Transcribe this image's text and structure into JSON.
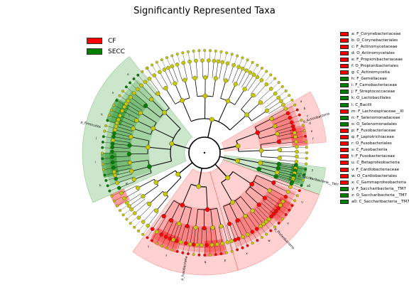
{
  "title": "Significantly Represented Taxa",
  "colors": {
    "CF": "#ff0000",
    "SECC": "#008000",
    "none": "#c8c800"
  },
  "legend": [
    {
      "label": "CF",
      "group": "CF"
    },
    {
      "label": "SECC",
      "group": "SECC"
    }
  ],
  "key_items": [
    {
      "text": "a: F_Corynebacteriaceae",
      "group": "CF"
    },
    {
      "text": "b: O_Corynebacteriales",
      "group": "CF"
    },
    {
      "text": "c: F_Actinomycetaceae",
      "group": "CF"
    },
    {
      "text": "d: O_Actinomycetales",
      "group": "CF"
    },
    {
      "text": "e: F_Propionibacteriaceae",
      "group": "CF"
    },
    {
      "text": "f: O_Propionibacteriales",
      "group": "CF"
    },
    {
      "text": "g: C_Actinomycetia",
      "group": "CF"
    },
    {
      "text": "h: F_Gemellaceae",
      "group": "SECC"
    },
    {
      "text": "i: F_Carnobacteriaceae",
      "group": "SECC"
    },
    {
      "text": "j: F_Streptococcaceae",
      "group": "SECC"
    },
    {
      "text": "k: O_Lactobacillales",
      "group": "SECC"
    },
    {
      "text": "l: C_Bacilli",
      "group": "SECC"
    },
    {
      "text": "m: F_Lachnospiraceae__XI",
      "group": "CF"
    },
    {
      "text": "n: F_Selenomonadaceae",
      "group": "SECC"
    },
    {
      "text": "o: O_Selenomonadales",
      "group": "SECC"
    },
    {
      "text": "p: F_Fusobacteriaceae",
      "group": "CF"
    },
    {
      "text": "q: F_Leptotrichiaceae",
      "group": "CF"
    },
    {
      "text": "r: O_Fusobacteriales",
      "group": "CF"
    },
    {
      "text": "s: C_Fusobacteriia",
      "group": "CF"
    },
    {
      "text": "t: F_Fusobacteriaceae",
      "group": "CF"
    },
    {
      "text": "u: C_Betaproteobacteria",
      "group": "CF"
    },
    {
      "text": "v: F_Cardiobacteriaceae",
      "group": "CF"
    },
    {
      "text": "w: O_Cardiobacteriales",
      "group": "CF"
    },
    {
      "text": "x: C_Gammaproteobacteria",
      "group": "CF"
    },
    {
      "text": "y: F_Saccharibacteria__TM7",
      "group": "SECC"
    },
    {
      "text": "z: O_Saccharibacteria__TM7",
      "group": "SECC"
    },
    {
      "text": "a0: C_Saccharibacteria__TM7",
      "group": "SECC"
    }
  ],
  "phyla": [
    {
      "label": "p_Actinobacteria",
      "group": "CF",
      "from": 60,
      "to": 85,
      "sub_letters": [
        "a",
        "b",
        "c",
        "d",
        "e",
        "f"
      ]
    },
    {
      "label": "p_Saccharibacteria__TM7",
      "group": "SECC",
      "from": 97,
      "to": 110,
      "sub_letters": [
        "y",
        "z",
        "a0"
      ]
    },
    {
      "label": "p_Proteobacteria",
      "group": "CF",
      "from": 110,
      "to": 164,
      "sub_letters": [
        "u",
        "v",
        "w",
        "x"
      ]
    },
    {
      "label": "p_Fusobacteria",
      "group": "CF",
      "from": 164,
      "to": 216,
      "sub_letters": [
        "p",
        "q",
        "r",
        "s",
        "t"
      ]
    },
    {
      "label": "p_Firmicutes",
      "group": "SECC",
      "from": 246,
      "to": 322,
      "sub_letters": [
        "h",
        "i",
        "j",
        "k",
        "n",
        "o"
      ]
    }
  ],
  "small_labels": [
    "m",
    "l"
  ]
}
